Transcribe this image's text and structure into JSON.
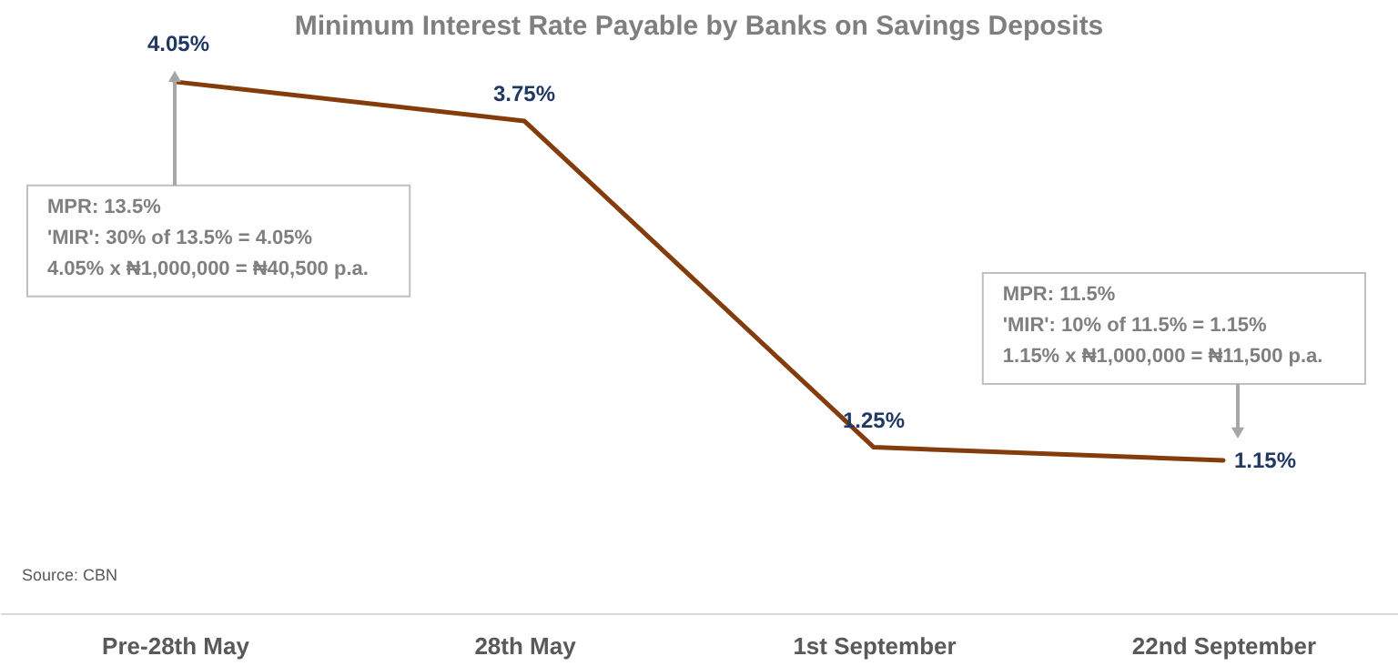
{
  "chart_data": {
    "type": "line",
    "title": "Minimum Interest Rate Payable by Banks on Savings Deposits",
    "categories": [
      "Pre-28th May",
      "28th May",
      "1st September",
      "22nd September"
    ],
    "series": [
      {
        "color": "#843c0c",
        "values": [
          4.05,
          3.75,
          1.25,
          1.15
        ],
        "value_labels": [
          "4.05%",
          "3.75%",
          "1.25%",
          "1.15%"
        ]
      }
    ],
    "annotations": [
      "MPR: 13.5%\n'MIR': 30% of 13.5% = 4.05%\n4.05% x ₦1,000,000 = ₦40,500 p.a.",
      "MPR: 11.5%\n'MIR': 10% of 11.5% = 1.15%\n1.15% x ₦1,000,000 = ₦11,500 p.a.",
      "Source: CBN"
    ],
    "grid": false,
    "marker": "none",
    "line_style": "solid"
  }
}
